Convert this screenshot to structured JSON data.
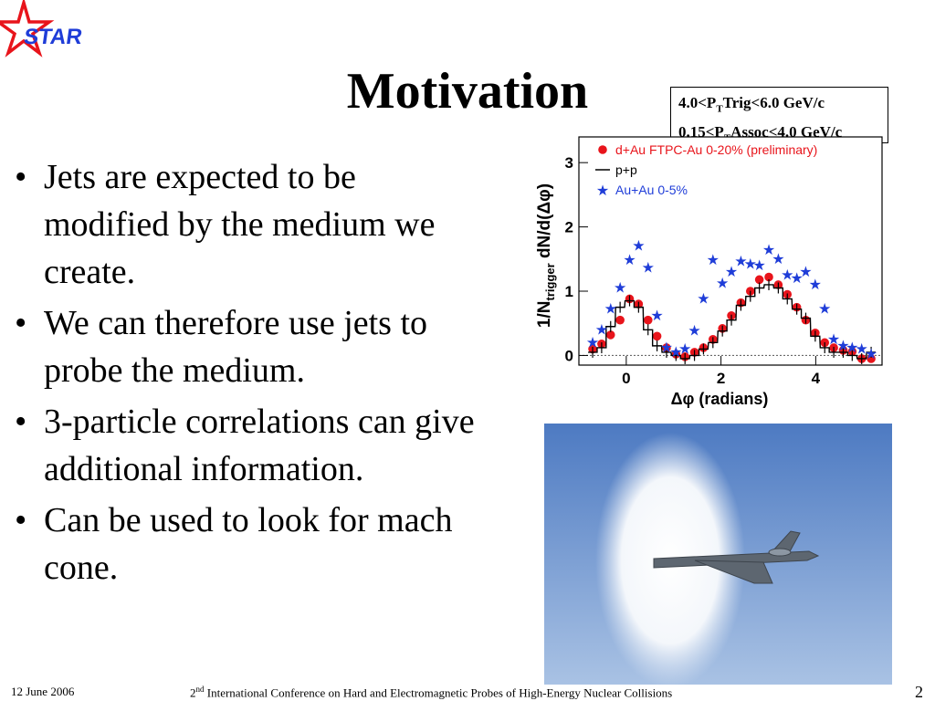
{
  "logo": {
    "text": "STAR"
  },
  "title": "Motivation",
  "bullets": [
    "Jets are expected to be modified by the medium we create.",
    "We can therefore use jets to probe the medium.",
    "3-particle correlations can give additional information.",
    "Can be used to look for mach cone."
  ],
  "info_box": {
    "line1": {
      "pre": "4.0<P",
      "sub": "T",
      "post": "Trig<6.0 GeV/c"
    },
    "line2": {
      "pre": "0.15<P",
      "sub": "T",
      "post": "Assoc<4.0 GeV/c"
    }
  },
  "footer": {
    "date": "12 June 2006",
    "conference_ordinal": "2",
    "conference_ordinal_suffix": "nd",
    "conference_name": " International Conference on Hard and Electromagnetic Probes of High-Energy Nuclear Collisions",
    "page_number": "2"
  },
  "chart_data": {
    "type": "scatter",
    "xlabel": "Δφ (radians)",
    "ylabel_main": "1/N",
    "ylabel_sub": "trigger",
    "ylabel_tail": " dN/d(Δφ)",
    "xlim": [
      -1.0,
      5.4
    ],
    "ylim": [
      -0.15,
      3.4
    ],
    "x_ticks": [
      0,
      2,
      4
    ],
    "y_ticks": [
      0,
      1,
      2,
      3
    ],
    "x": [
      -0.71,
      -0.52,
      -0.33,
      -0.13,
      0.07,
      0.26,
      0.46,
      0.65,
      0.85,
      1.05,
      1.24,
      1.44,
      1.63,
      1.83,
      2.03,
      2.22,
      2.42,
      2.62,
      2.81,
      3.01,
      3.21,
      3.4,
      3.6,
      3.79,
      3.99,
      4.19,
      4.38,
      4.58,
      4.77,
      4.97,
      5.17
    ],
    "legend_position": "top",
    "series": [
      {
        "name": "d+Au FTPC-Au 0-20% (preliminary)",
        "marker": "circle",
        "color": "#e8141b",
        "values": [
          0.1,
          0.18,
          0.32,
          0.55,
          0.88,
          0.8,
          0.55,
          0.3,
          0.12,
          0.02,
          -0.02,
          0.05,
          0.12,
          0.25,
          0.42,
          0.62,
          0.82,
          1.0,
          1.18,
          1.22,
          1.1,
          0.95,
          0.75,
          0.55,
          0.35,
          0.2,
          0.12,
          0.08,
          0.06,
          -0.05,
          -0.05
        ]
      },
      {
        "name": "p+p",
        "marker": "step",
        "color": "#000000",
        "values": [
          0.05,
          0.12,
          0.45,
          0.75,
          0.85,
          0.75,
          0.4,
          0.15,
          0.05,
          0.0,
          -0.05,
          0.0,
          0.1,
          0.2,
          0.38,
          0.55,
          0.78,
          0.92,
          1.05,
          1.1,
          1.05,
          0.88,
          0.72,
          0.58,
          0.3,
          0.12,
          0.05,
          0.05,
          0.0,
          -0.05,
          0.05
        ]
      },
      {
        "name": "Au+Au 0-5%",
        "marker": "star",
        "color": "#1f3dd8",
        "values": [
          0.2,
          0.4,
          0.72,
          1.05,
          1.48,
          1.7,
          1.36,
          0.62,
          0.12,
          0.05,
          0.1,
          0.38,
          0.88,
          1.48,
          1.12,
          1.3,
          1.46,
          1.42,
          1.4,
          1.64,
          1.5,
          1.25,
          1.2,
          1.3,
          1.1,
          0.72,
          0.25,
          0.15,
          0.12,
          0.1,
          0.02
        ]
      }
    ]
  }
}
